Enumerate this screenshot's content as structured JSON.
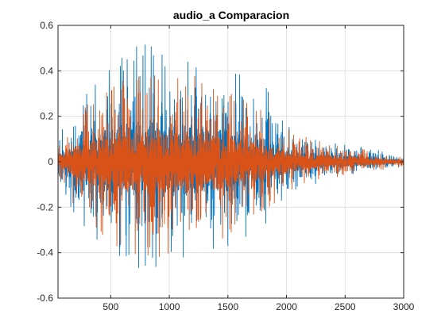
{
  "chart_data": {
    "type": "line",
    "title": "audio_a Comparacion",
    "xlabel": "",
    "ylabel": "",
    "xlim": [
      50,
      3000
    ],
    "ylim": [
      -0.6,
      0.6
    ],
    "grid": true,
    "xticks": [
      500,
      1000,
      1500,
      2000,
      2500,
      3000
    ],
    "xtick_labels": [
      "500",
      "1000",
      "1500",
      "2000",
      "2500",
      "3000"
    ],
    "yticks": [
      -0.6,
      -0.4,
      -0.2,
      0,
      0.2,
      0.4,
      0.6
    ],
    "ytick_labels": [
      "-0.6",
      "-0.4",
      "-0.2",
      "0",
      "0.2",
      "0.4",
      "0.6"
    ],
    "series": [
      {
        "color": "#0072BD",
        "envelope": {
          "x": [
            50,
            150,
            300,
            500,
            700,
            850,
            1000,
            1200,
            1400,
            1600,
            1800,
            1950,
            2100,
            2300,
            2500,
            2700,
            2900,
            3000
          ],
          "max": [
            0.12,
            0.18,
            0.32,
            0.42,
            0.51,
            0.52,
            0.48,
            0.46,
            0.45,
            0.4,
            0.35,
            0.21,
            0.14,
            0.1,
            0.08,
            0.06,
            0.04,
            0.02
          ],
          "min": [
            -0.1,
            -0.2,
            -0.3,
            -0.4,
            -0.48,
            -0.48,
            -0.46,
            -0.42,
            -0.4,
            -0.36,
            -0.3,
            -0.2,
            -0.12,
            -0.09,
            -0.06,
            -0.05,
            -0.03,
            -0.02
          ]
        }
      },
      {
        "color": "#D95319",
        "envelope": {
          "x": [
            50,
            150,
            300,
            500,
            700,
            850,
            1000,
            1200,
            1400,
            1600,
            1800,
            1950,
            2100,
            2300,
            2500,
            2700,
            2900,
            3000
          ],
          "max": [
            0.1,
            0.16,
            0.26,
            0.34,
            0.4,
            0.42,
            0.4,
            0.38,
            0.34,
            0.3,
            0.22,
            0.17,
            0.12,
            0.09,
            0.07,
            0.05,
            0.03,
            0.02
          ],
          "min": [
            -0.08,
            -0.16,
            -0.28,
            -0.36,
            -0.42,
            -0.44,
            -0.42,
            -0.4,
            -0.36,
            -0.3,
            -0.22,
            -0.17,
            -0.11,
            -0.08,
            -0.06,
            -0.04,
            -0.03,
            -0.02
          ]
        }
      }
    ]
  },
  "colors": {
    "axis": "#262626",
    "grid": "#DFDFDF",
    "series_1": "#0072BD",
    "series_2": "#D95319"
  }
}
